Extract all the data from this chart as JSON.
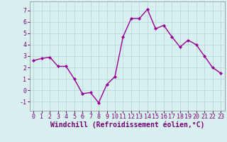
{
  "x": [
    0,
    1,
    2,
    3,
    4,
    5,
    6,
    7,
    8,
    9,
    10,
    11,
    12,
    13,
    14,
    15,
    16,
    17,
    18,
    19,
    20,
    21,
    22,
    23
  ],
  "y": [
    2.6,
    2.8,
    2.9,
    2.1,
    2.1,
    1.0,
    -0.3,
    -0.2,
    -1.1,
    0.5,
    1.2,
    4.7,
    6.3,
    6.3,
    7.1,
    5.4,
    5.7,
    4.7,
    3.8,
    4.4,
    4.0,
    3.0,
    2.0,
    1.5
  ],
  "line_color": "#990099",
  "marker": "D",
  "marker_size": 2,
  "line_width": 1.0,
  "bg_color": "#d8f0f0",
  "grid_color": "#b8dada",
  "xlabel": "Windchill (Refroidissement éolien,°C)",
  "ylim": [
    -1.8,
    7.8
  ],
  "xlim": [
    -0.5,
    23.5
  ],
  "yticks": [
    -1,
    0,
    1,
    2,
    3,
    4,
    5,
    6,
    7
  ],
  "xticks": [
    0,
    1,
    2,
    3,
    4,
    5,
    6,
    7,
    8,
    9,
    10,
    11,
    12,
    13,
    14,
    15,
    16,
    17,
    18,
    19,
    20,
    21,
    22,
    23
  ]
}
